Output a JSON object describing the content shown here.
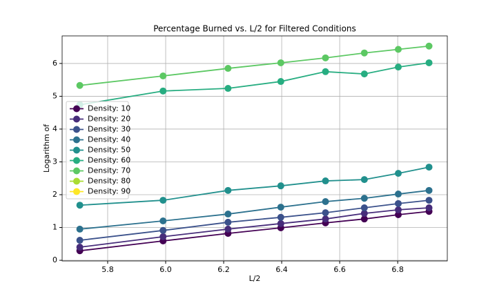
{
  "chart_data": {
    "type": "line",
    "title": "Percentage Burned vs. L/2 for Filtered Conditions",
    "xlabel": "L/2",
    "ylabel": "Logarithm of",
    "x": [
      5.704,
      5.991,
      6.215,
      6.397,
      6.551,
      6.685,
      6.802,
      6.908
    ],
    "series": [
      {
        "name": "Density: 10",
        "color": "#440154",
        "values": [
          0.29,
          0.59,
          0.82,
          0.99,
          1.14,
          1.26,
          1.39,
          1.49
        ]
      },
      {
        "name": "Density: 20",
        "color": "#472c7a",
        "values": [
          0.4,
          0.72,
          0.95,
          1.12,
          1.26,
          1.43,
          1.54,
          1.6
        ]
      },
      {
        "name": "Density: 30",
        "color": "#3b518b",
        "values": [
          0.61,
          0.91,
          1.16,
          1.31,
          1.45,
          1.6,
          1.73,
          1.83
        ]
      },
      {
        "name": "Density: 40",
        "color": "#2c718e",
        "values": [
          0.95,
          1.2,
          1.41,
          1.62,
          1.79,
          1.89,
          2.02,
          2.13
        ]
      },
      {
        "name": "Density: 50",
        "color": "#21908d",
        "values": [
          1.68,
          1.83,
          2.13,
          2.27,
          2.42,
          2.46,
          2.65,
          2.84
        ]
      },
      {
        "name": "Density: 60",
        "color": "#27ad81",
        "values": [
          4.74,
          5.16,
          5.24,
          5.45,
          5.75,
          5.68,
          5.89,
          6.02
        ]
      },
      {
        "name": "Density: 70",
        "color": "#5cc863",
        "values": [
          5.33,
          5.62,
          5.85,
          6.02,
          6.17,
          6.32,
          6.43,
          6.53
        ]
      },
      {
        "name": "Density: 80",
        "color": "#aadc32",
        "values": [
          null,
          null,
          null,
          null,
          null,
          null,
          null,
          null
        ]
      },
      {
        "name": "Density: 90",
        "color": "#fde725",
        "values": [
          null,
          null,
          null,
          null,
          null,
          null,
          null,
          null
        ]
      }
    ],
    "xlim": [
      5.643,
      6.971
    ],
    "xticks": [
      5.8,
      {
        "value": 6,
        "label": "6.0"
      },
      6.2,
      6.4,
      6.6,
      6.8
    ],
    "ylim": [
      -0.02,
      6.84
    ],
    "yticks": [
      0,
      1,
      2,
      3,
      4,
      5,
      6
    ],
    "grid": true,
    "legend": "upper left"
  }
}
